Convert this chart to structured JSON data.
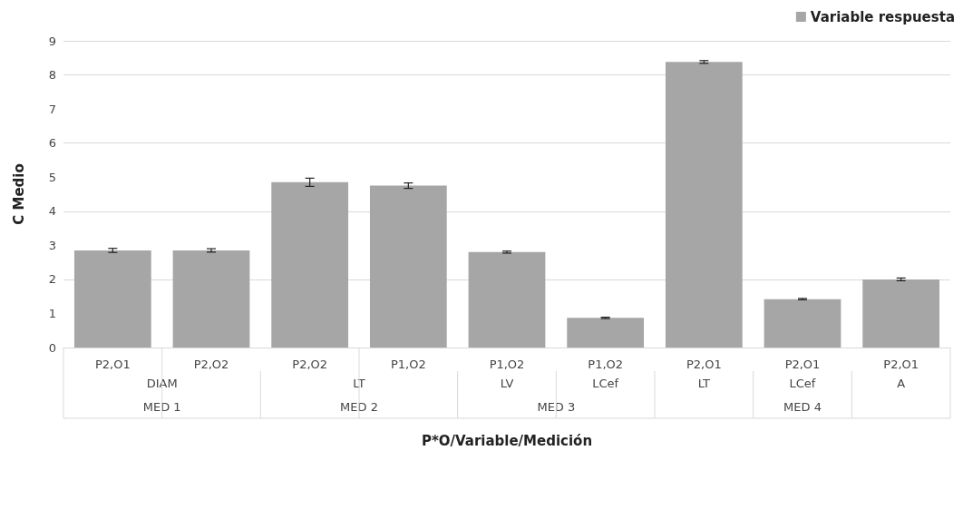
{
  "chart_data": {
    "type": "bar",
    "xlabel": "P*O/Variable/Medición",
    "ylabel": "C Medio",
    "categories": [
      "P2,O1",
      "P2,O2",
      "P2,O2",
      "P1,O2",
      "P1,O2",
      "P1,O2",
      "P2,O1",
      "P2,O1",
      "P2,O1"
    ],
    "annotations": [
      "DIAM",
      "LT",
      "LV",
      "LCef",
      "LT",
      "LCef",
      "A",
      "MED 1",
      "MED 2",
      "MED 3",
      "MED 4"
    ],
    "series": [
      {
        "name": "Variable respuesta",
        "color": "#a6a6a6",
        "values": [
          2.85,
          2.85,
          4.85,
          4.75,
          2.8,
          0.87,
          8.38,
          1.42,
          2.0
        ],
        "errors": [
          0.06,
          0.05,
          0.12,
          0.08,
          0.03,
          0.02,
          0.04,
          0.02,
          0.04
        ]
      }
    ],
    "ylim": [
      0,
      9
    ],
    "yticks": [
      0,
      1,
      2,
      3,
      4,
      5,
      6,
      7,
      8,
      9
    ],
    "grid": "y",
    "legend": "top right"
  }
}
